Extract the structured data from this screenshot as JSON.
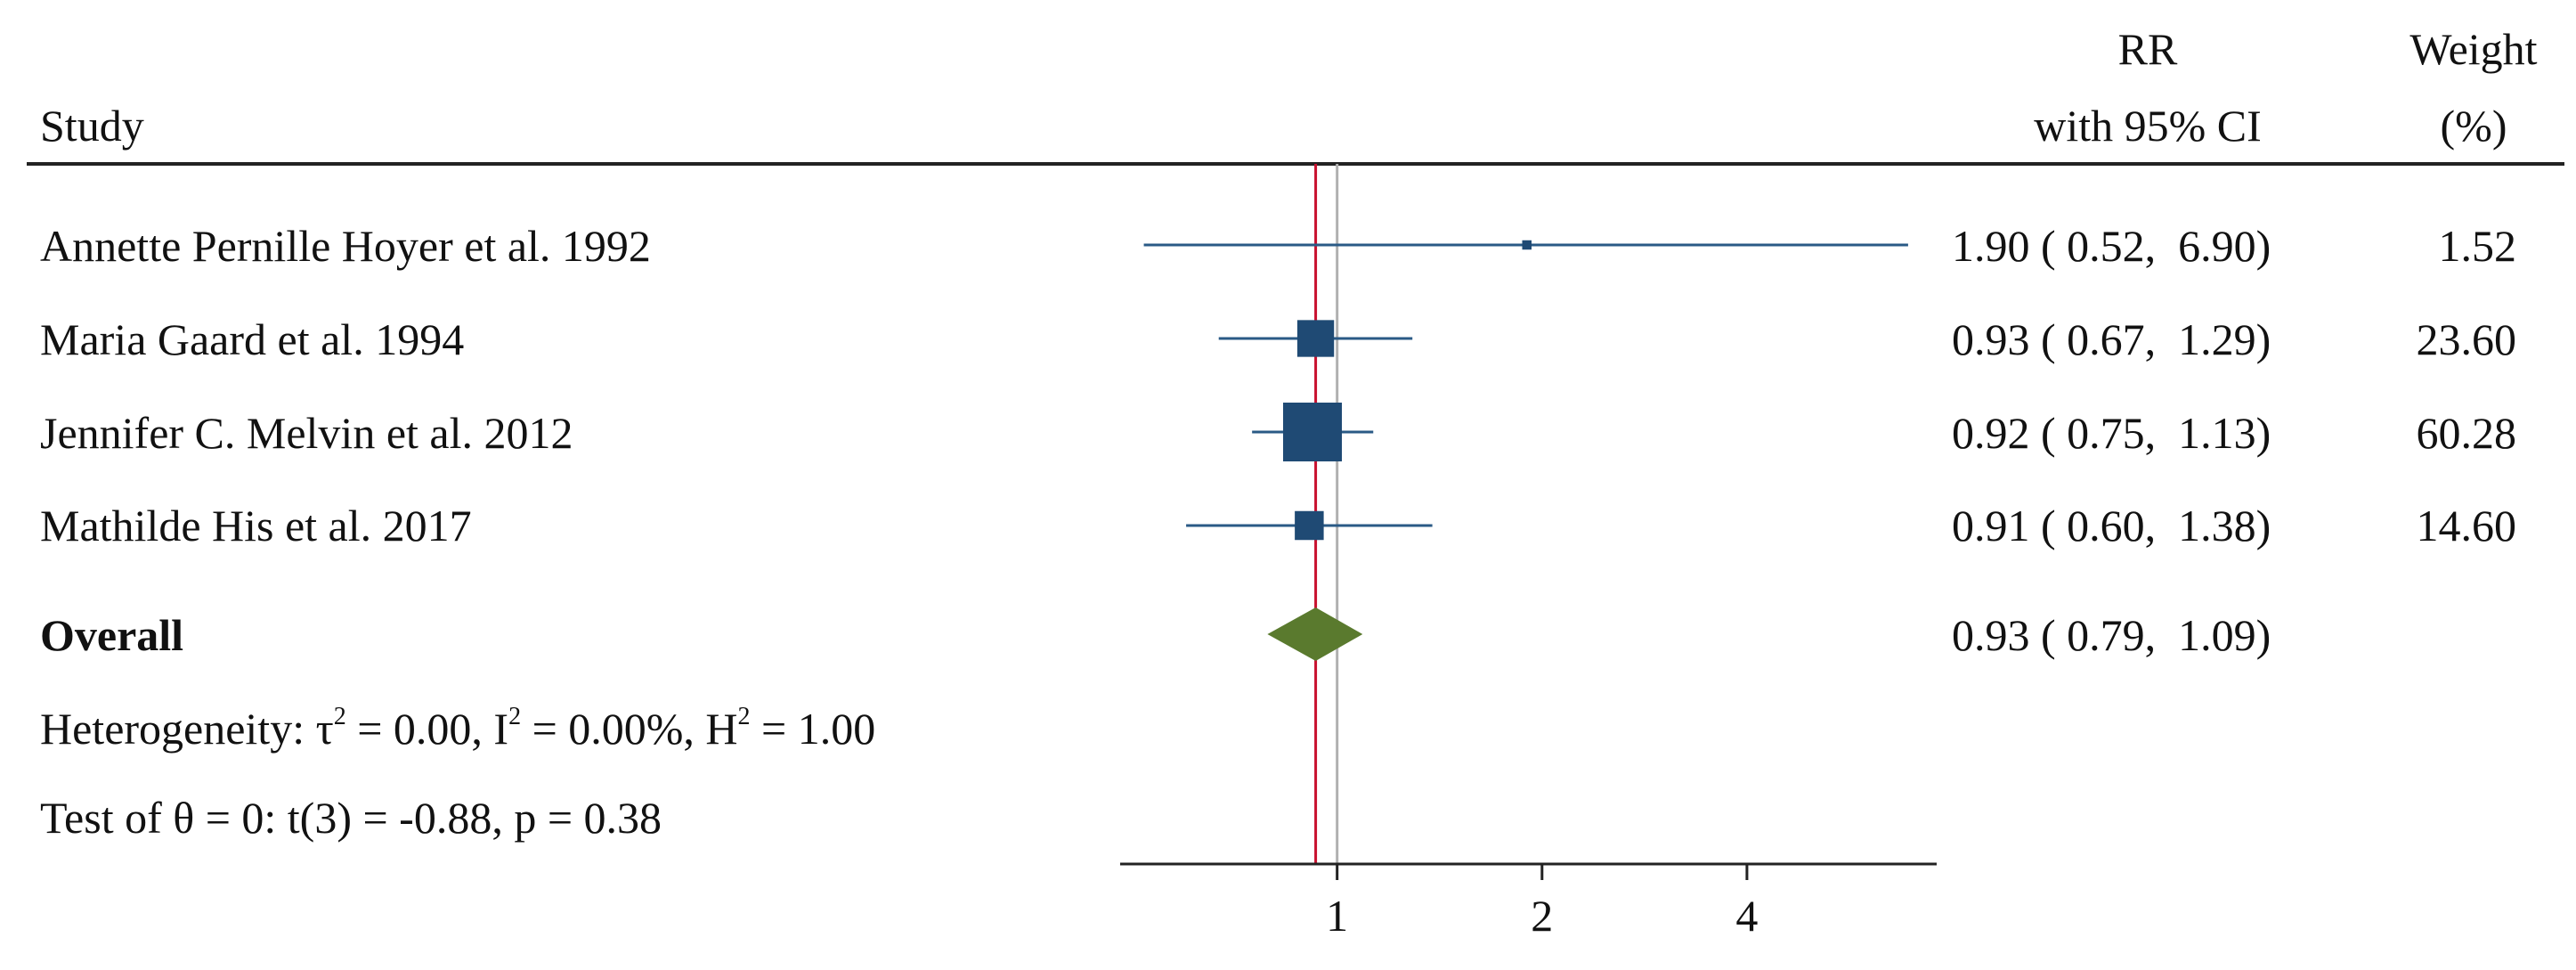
{
  "chart_data": {
    "type": "forest",
    "headers": {
      "study": "Study",
      "rr_line1": "RR",
      "rr_line2": "with 95% CI",
      "weight_line1": "Weight",
      "weight_line2": "(%)"
    },
    "studies": [
      {
        "label": "Annette Pernille Hoyer et al. 1992",
        "rr": 1.9,
        "lo": 0.52,
        "hi": 6.9,
        "ci_text": "1.90 ( 0.52,  6.90)",
        "weight": 1.52,
        "weight_text": "1.52"
      },
      {
        "label": "Maria Gaard et al. 1994",
        "rr": 0.93,
        "lo": 0.67,
        "hi": 1.29,
        "ci_text": "0.93 ( 0.67,  1.29)",
        "weight": 23.6,
        "weight_text": "23.60"
      },
      {
        "label": "Jennifer C. Melvin et al. 2012",
        "rr": 0.92,
        "lo": 0.75,
        "hi": 1.13,
        "ci_text": "0.92 ( 0.75,  1.13)",
        "weight": 60.28,
        "weight_text": "60.28"
      },
      {
        "label": "Mathilde His et al. 2017",
        "rr": 0.91,
        "lo": 0.6,
        "hi": 1.38,
        "ci_text": "0.91 ( 0.60,  1.38)",
        "weight": 14.6,
        "weight_text": "14.60"
      }
    ],
    "overall": {
      "label": "Overall",
      "rr": 0.93,
      "lo": 0.79,
      "hi": 1.09,
      "ci_text": "0.93 ( 0.79,  1.09)"
    },
    "heterogeneity": {
      "prefix": "Heterogeneity: ",
      "tau": "τ",
      "tau_val": " = 0.00, I",
      "i_val": " = 0.00%, H",
      "h_val": " = 1.00",
      "sup": "2"
    },
    "test": "Test of θ = 0: t(3) = -0.88, p = 0.38",
    "x_axis": {
      "scale": "log",
      "range": [
        0.48,
        7.6
      ],
      "ticks": [
        1,
        2,
        4
      ],
      "tick_labels": [
        "1",
        "2",
        "4"
      ]
    },
    "reference_line": 1,
    "colors": {
      "marker": "#1f4a74",
      "ci_line": "#2a5a86",
      "diamond": "#5a7a2e",
      "overall_line": "#c8102e",
      "null_line": "#b0b0b0",
      "text": "#111111"
    }
  }
}
